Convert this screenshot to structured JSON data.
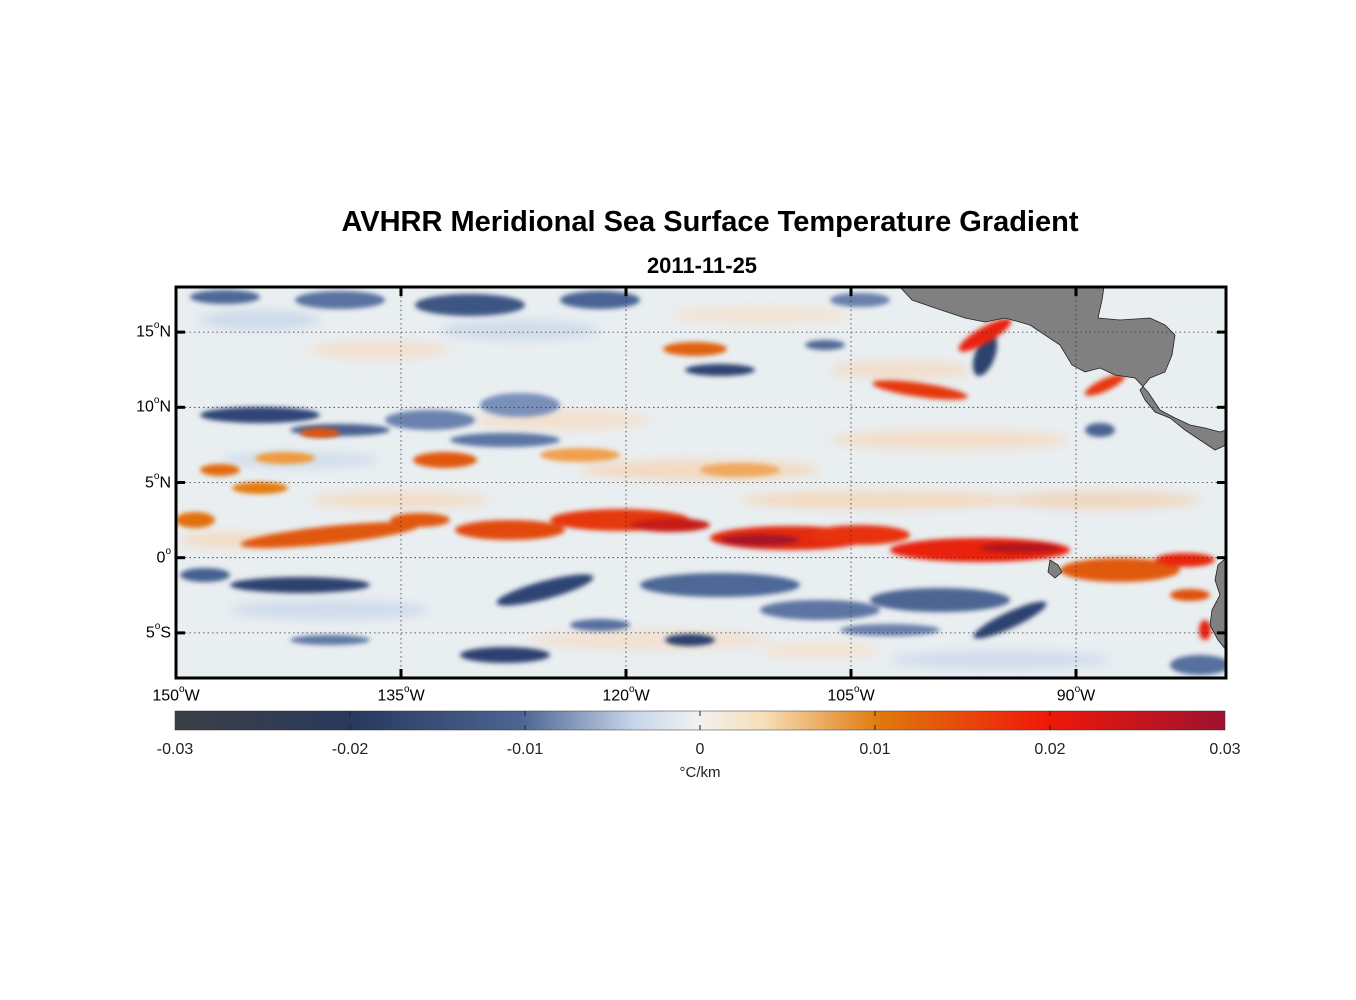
{
  "title": "AVHRR Meridional Sea Surface Temperature Gradient",
  "subtitle": "2011-11-25",
  "map": {
    "lon_range": [
      -150,
      -80
    ],
    "lat_range": [
      -8,
      18
    ],
    "lon_ticks": [
      {
        "lon": -150,
        "num": "150",
        "hemi": "W"
      },
      {
        "lon": -135,
        "num": "135",
        "hemi": "W"
      },
      {
        "lon": -120,
        "num": "120",
        "hemi": "W"
      },
      {
        "lon": -105,
        "num": "105",
        "hemi": "W"
      },
      {
        "lon": -90,
        "num": "90",
        "hemi": "W"
      }
    ],
    "lat_ticks": [
      {
        "lat": 15,
        "num": "15",
        "hemi": "N"
      },
      {
        "lat": 10,
        "num": "10",
        "hemi": "N"
      },
      {
        "lat": 5,
        "num": "5",
        "hemi": "N"
      },
      {
        "lat": 0,
        "num": "0",
        "hemi": ""
      },
      {
        "lat": -5,
        "num": "5",
        "hemi": "S"
      }
    ],
    "land_color": "#808080",
    "ocean_base_color": "#e6ebef"
  },
  "colorbar": {
    "ticks": [
      "-0.03",
      "-0.02",
      "-0.01",
      "0",
      "0.01",
      "0.02",
      "0.03"
    ],
    "label": "°C/km",
    "colors": [
      "#3b3e44",
      "#2a3a60",
      "#5a72a0",
      "#e8eef2",
      "#f7e6c8",
      "#e2780a",
      "#ef1a0a",
      "#9c1230"
    ]
  }
}
